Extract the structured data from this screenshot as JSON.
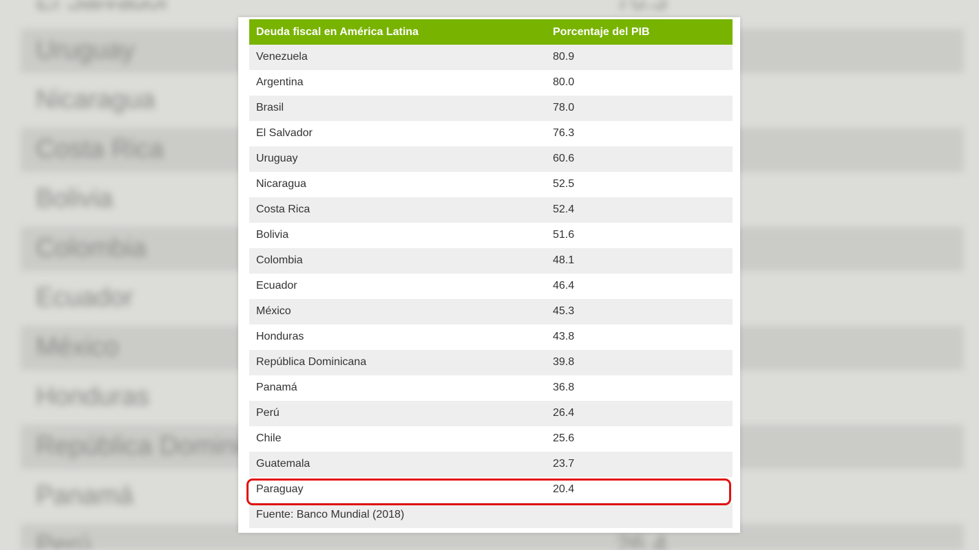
{
  "table": {
    "header": {
      "col1": "Deuda fiscal en América Latina",
      "col2": "Porcentaje del PIB"
    },
    "rows": [
      {
        "country": "Venezuela",
        "value": "80.9"
      },
      {
        "country": "Argentina",
        "value": "80.0"
      },
      {
        "country": "Brasil",
        "value": "78.0"
      },
      {
        "country": "El Salvador",
        "value": "76.3"
      },
      {
        "country": "Uruguay",
        "value": "60.6"
      },
      {
        "country": "Nicaragua",
        "value": "52.5"
      },
      {
        "country": "Costa Rica",
        "value": "52.4"
      },
      {
        "country": "Bolivia",
        "value": "51.6"
      },
      {
        "country": "Colombia",
        "value": "48.1"
      },
      {
        "country": "Ecuador",
        "value": "46.4"
      },
      {
        "country": "México",
        "value": "45.3"
      },
      {
        "country": "Honduras",
        "value": "43.8"
      },
      {
        "country": "República Dominicana",
        "value": "39.8"
      },
      {
        "country": "Panamá",
        "value": "36.8"
      },
      {
        "country": "Perú",
        "value": "26.4"
      },
      {
        "country": "Chile",
        "value": "25.6"
      },
      {
        "country": "Guatemala",
        "value": "23.7"
      },
      {
        "country": "Paraguay",
        "value": "20.4"
      }
    ],
    "source": "Fuente: Banco Mundial (2018)",
    "highlighted_country": "Paraguay"
  },
  "colors": {
    "header_green": "#78b300",
    "highlight_red": "#e01010",
    "row_shade": "#eeeeee"
  }
}
